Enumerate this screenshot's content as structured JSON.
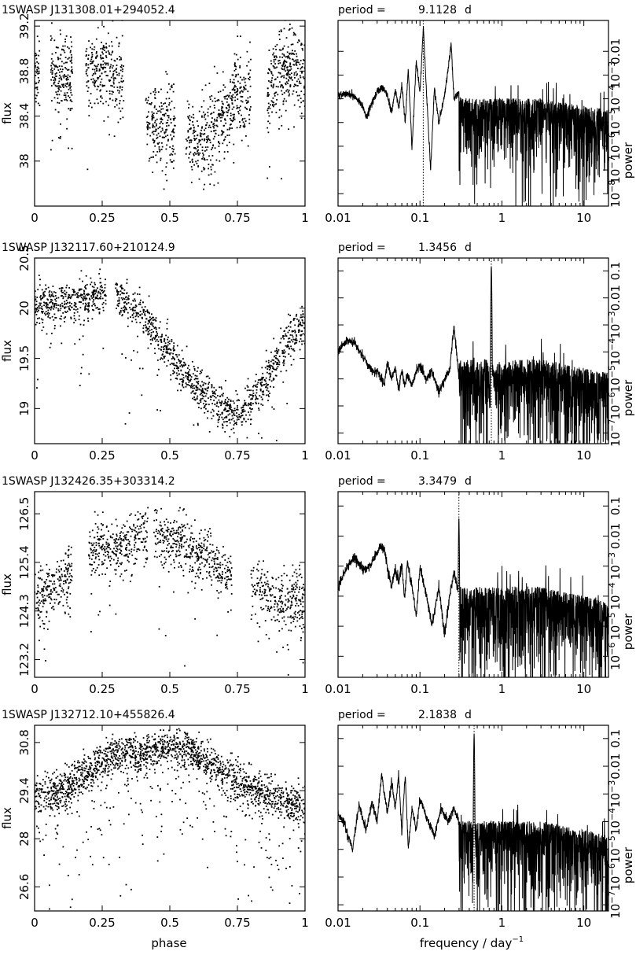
{
  "figure": {
    "xlabel_phase": "phase",
    "xlabel_freq": "frequency / day",
    "xlabel_freq_exp": "−1",
    "ylabel_flux": "flux",
    "ylabel_power": "power",
    "period_prefix": "period =",
    "period_unit": "d"
  },
  "chart_data": [
    {
      "type": "scatter",
      "title": "1SWASP J131308.01+294052.4",
      "xlabel": "",
      "ylabel": "flux",
      "xlim": [
        0,
        1
      ],
      "ylim": [
        37.6,
        39.25
      ],
      "xticks": [
        0,
        0.25,
        0.5,
        0.75,
        1
      ],
      "xtick_labels": [
        "0",
        "0.25",
        "0.5",
        "0.75",
        "1"
      ],
      "yticks": [
        38,
        38.4,
        38.8,
        39.2
      ],
      "ytick_labels": [
        "38",
        "38.4",
        "38.8",
        "39.2"
      ],
      "light_curve": {
        "x": [
          0.0,
          0.05,
          0.1,
          0.15,
          0.2,
          0.25,
          0.3,
          0.35,
          0.4,
          0.45,
          0.5,
          0.55,
          0.6,
          0.65,
          0.7,
          0.75,
          0.8,
          0.85,
          0.9,
          0.95,
          1.0
        ],
        "y": [
          38.75,
          38.85,
          38.8,
          38.75,
          38.85,
          38.8,
          38.75,
          38.7,
          38.4,
          38.3,
          38.3,
          38.25,
          38.2,
          38.3,
          38.45,
          38.6,
          38.5,
          38.55,
          38.8,
          38.85,
          38.75
        ]
      },
      "scatter_sd": 0.32,
      "outlier_fraction": 0.07,
      "sample_gaps": [
        [
          0.02,
          0.06
        ],
        [
          0.14,
          0.19
        ],
        [
          0.33,
          0.41
        ],
        [
          0.52,
          0.56
        ],
        [
          0.8,
          0.86
        ]
      ],
      "n_points": 1500,
      "seed": 11
    },
    {
      "type": "line",
      "title": "period = 9.1128 d",
      "period_value": "9.1128",
      "xlabel": "",
      "ylabel": "power",
      "xscale": "log",
      "yscale": "log",
      "xlim": [
        0.01,
        20
      ],
      "ylim": [
        3e-09,
        0.2
      ],
      "xticks": [
        0.01,
        0.1,
        1,
        10
      ],
      "xtick_labels": [
        "0.01",
        "0.1",
        "1",
        "10"
      ],
      "yticks": [
        1e-08,
        1e-07,
        1e-06,
        1e-05,
        0.0001,
        0.001,
        0.01
      ],
      "ytick_labels": [
        "10−8",
        "10−7",
        "10−6",
        "10−5",
        "10−4",
        "10−3",
        "0.01"
      ],
      "peak_frequency": 0.1097,
      "peak_power": 0.095,
      "noise_level": 3e-05,
      "spectrum_points": {
        "frequency": [
          0.01,
          0.0125,
          0.016,
          0.02,
          0.022,
          0.025,
          0.03,
          0.035,
          0.04,
          0.045,
          0.05,
          0.055,
          0.06,
          0.066,
          0.072,
          0.08,
          0.09,
          0.1,
          0.11,
          0.12,
          0.135,
          0.15,
          0.17,
          0.2,
          0.22,
          0.24,
          0.26,
          0.3
        ],
        "power": [
          0.00014,
          0.00016,
          0.00013,
          5e-05,
          1.5e-05,
          5e-05,
          0.0002,
          0.00032,
          0.00015,
          2.5e-05,
          0.00025,
          4e-05,
          0.0004,
          1e-05,
          0.002,
          8e-07,
          0.004,
          0.0002,
          0.095,
          0.0002,
          1e-07,
          0.0003,
          1e-05,
          0.00015,
          0.0015,
          0.025,
          0.0001,
          0.0002
        ]
      },
      "seed": 101
    },
    {
      "type": "scatter",
      "title": "1SWASP J132117.60+210124.9",
      "xlabel": "",
      "ylabel": "flux",
      "xlim": [
        0,
        1
      ],
      "ylim": [
        18.65,
        20.5
      ],
      "xticks": [
        0,
        0.25,
        0.5,
        0.75,
        1
      ],
      "xtick_labels": [
        "0",
        "0.25",
        "0.5",
        "0.75",
        "1"
      ],
      "yticks": [
        19,
        19.5,
        20,
        20.5
      ],
      "ytick_labels": [
        "19",
        "19.5",
        "20",
        "20.5"
      ],
      "light_curve": {
        "x": [
          0.0,
          0.05,
          0.1,
          0.15,
          0.2,
          0.25,
          0.3,
          0.35,
          0.4,
          0.45,
          0.5,
          0.55,
          0.6,
          0.65,
          0.7,
          0.75,
          0.8,
          0.85,
          0.9,
          0.95,
          1.0
        ],
        "y": [
          20.0,
          20.05,
          20.05,
          20.05,
          20.1,
          20.15,
          20.1,
          20.05,
          19.95,
          19.75,
          19.55,
          19.35,
          19.2,
          19.1,
          19.0,
          18.95,
          19.05,
          19.25,
          19.5,
          19.7,
          19.85
        ]
      },
      "scatter_sd": 0.18,
      "outlier_fraction": 0.05,
      "sample_gaps": [
        [
          0.265,
          0.3
        ]
      ],
      "n_points": 1500,
      "seed": 22
    },
    {
      "type": "line",
      "title": "period = 1.3456 d",
      "period_value": "1.3456",
      "xlabel": "",
      "ylabel": "power",
      "xscale": "log",
      "yscale": "log",
      "xlim": [
        0.01,
        20
      ],
      "ylim": [
        4e-08,
        0.3
      ],
      "xticks": [
        0.01,
        0.1,
        1,
        10
      ],
      "xtick_labels": [
        "0.01",
        "0.1",
        "1",
        "10"
      ],
      "yticks": [
        1e-07,
        1e-06,
        1e-05,
        0.0001,
        0.001,
        0.01,
        0.1
      ],
      "ytick_labels": [
        "10−7",
        "10−6",
        "10−5",
        "10−4",
        "10−3",
        "0.01",
        "0.1"
      ],
      "peak_frequency": 0.7432,
      "peak_power": 0.15,
      "noise_level": 1.5e-05,
      "spectrum_points": {
        "frequency": [
          0.01,
          0.013,
          0.016,
          0.02,
          0.023,
          0.027,
          0.03,
          0.033,
          0.037,
          0.04,
          0.045,
          0.05,
          0.055,
          0.06,
          0.065,
          0.07,
          0.08,
          0.09,
          0.1,
          0.12,
          0.14,
          0.17,
          0.2,
          0.23,
          0.26,
          0.3
        ],
        "power": [
          0.0001,
          0.0003,
          0.0002,
          7e-05,
          3e-05,
          2e-05,
          2e-05,
          1e-05,
          7e-06,
          4e-05,
          1e-05,
          2.5e-05,
          4e-06,
          2e-05,
          6e-06,
          1.5e-05,
          6e-06,
          2e-05,
          3e-05,
          1e-05,
          2e-05,
          3e-06,
          1e-05,
          2e-05,
          0.001,
          1e-05
        ]
      },
      "seed": 202
    },
    {
      "type": "scatter",
      "title": "1SWASP J132426.35+303314.2",
      "xlabel": "",
      "ylabel": "flux",
      "xlim": [
        0,
        1
      ],
      "ylim": [
        122.8,
        127.0
      ],
      "xticks": [
        0,
        0.25,
        0.5,
        0.75,
        1
      ],
      "xtick_labels": [
        "0",
        "0.25",
        "0.5",
        "0.75",
        "1"
      ],
      "yticks": [
        123.2,
        124.3,
        125.4,
        126.5
      ],
      "ytick_labels": [
        "123.2",
        "124.3",
        "125.4",
        "126.5"
      ],
      "light_curve": {
        "x": [
          0.0,
          0.05,
          0.1,
          0.15,
          0.2,
          0.25,
          0.3,
          0.35,
          0.4,
          0.45,
          0.5,
          0.55,
          0.6,
          0.65,
          0.7,
          0.75,
          0.8,
          0.85,
          0.9,
          0.95,
          1.0
        ],
        "y": [
          124.6,
          124.8,
          125.0,
          125.3,
          125.6,
          125.8,
          125.6,
          125.9,
          126.0,
          126.2,
          125.8,
          125.9,
          125.6,
          125.5,
          125.2,
          125.1,
          125.0,
          124.7,
          124.5,
          124.6,
          124.6
        ]
      },
      "scatter_sd": 0.55,
      "outlier_fraction": 0.08,
      "sample_gaps": [
        [
          0.14,
          0.2
        ],
        [
          0.42,
          0.44
        ],
        [
          0.73,
          0.8
        ]
      ],
      "n_points": 1300,
      "seed": 33
    },
    {
      "type": "line",
      "title": "period = 3.3479 d",
      "period_value": "3.3479",
      "xlabel": "",
      "ylabel": "power",
      "xscale": "log",
      "yscale": "log",
      "xlim": [
        0.01,
        20
      ],
      "ylim": [
        2e-07,
        0.3
      ],
      "xticks": [
        0.01,
        0.1,
        1,
        10
      ],
      "xtick_labels": [
        "0.01",
        "0.1",
        "1",
        "10"
      ],
      "yticks": [
        1e-06,
        1e-05,
        0.0001,
        0.001,
        0.01,
        0.1
      ],
      "ytick_labels": [
        "10−6",
        "10−5",
        "10−4",
        "10−3",
        "0.01",
        "0.1"
      ],
      "peak_frequency": 0.2987,
      "peak_power": 0.04,
      "noise_level": 6e-05,
      "spectrum_points": {
        "frequency": [
          0.01,
          0.013,
          0.016,
          0.02,
          0.025,
          0.03,
          0.033,
          0.036,
          0.04,
          0.045,
          0.05,
          0.055,
          0.06,
          0.065,
          0.07,
          0.08,
          0.09,
          0.1,
          0.12,
          0.14,
          0.17,
          0.2,
          0.23,
          0.26,
          0.3
        ],
        "power": [
          0.0002,
          0.001,
          0.002,
          0.0008,
          0.001,
          0.003,
          0.005,
          0.004,
          0.001,
          0.0002,
          0.0008,
          0.0003,
          0.001,
          8e-05,
          0.0015,
          0.0002,
          2e-05,
          0.001,
          0.0001,
          1e-05,
          0.0002,
          5e-06,
          0.0001,
          0.0006,
          0.0001
        ]
      },
      "seed": 303
    },
    {
      "type": "scatter",
      "title": "1SWASP J132712.10+455826.4",
      "xlabel": "phase",
      "ylabel": "flux",
      "xlim": [
        0,
        1
      ],
      "ylim": [
        25.9,
        31.3
      ],
      "xticks": [
        0,
        0.25,
        0.5,
        0.75,
        1
      ],
      "xtick_labels": [
        "0",
        "0.25",
        "0.5",
        "0.75",
        "1"
      ],
      "yticks": [
        26.6,
        28,
        29.4,
        30.8
      ],
      "ytick_labels": [
        "26.6",
        "28",
        "29.4",
        "30.8"
      ],
      "light_curve": {
        "x": [
          0.0,
          0.05,
          0.1,
          0.15,
          0.2,
          0.25,
          0.3,
          0.35,
          0.4,
          0.45,
          0.5,
          0.55,
          0.6,
          0.65,
          0.7,
          0.75,
          0.8,
          0.85,
          0.9,
          0.95,
          1.0
        ],
        "y": [
          29.2,
          29.3,
          29.4,
          29.7,
          30.0,
          30.2,
          30.5,
          30.5,
          30.4,
          30.6,
          30.7,
          30.6,
          30.4,
          30.2,
          29.9,
          29.7,
          29.5,
          29.3,
          29.2,
          29.0,
          29.0
        ]
      },
      "scatter_sd": 0.5,
      "outlier_fraction": 0.12,
      "sample_gaps": [],
      "n_points": 2000,
      "seed": 44
    },
    {
      "type": "line",
      "title": "period = 2.1838 d",
      "period_value": "2.1838",
      "xlabel": "frequency / day−1",
      "ylabel": "power",
      "xscale": "log",
      "yscale": "log",
      "xlim": [
        0.01,
        20
      ],
      "ylim": [
        6e-08,
        0.3
      ],
      "xticks": [
        0.01,
        0.1,
        1,
        10
      ],
      "xtick_labels": [
        "0.01",
        "0.1",
        "1",
        "10"
      ],
      "yticks": [
        1e-07,
        1e-06,
        1e-05,
        0.0001,
        0.001,
        0.01,
        0.1
      ],
      "ytick_labels": [
        "10−7",
        "10−6",
        "10−5",
        "10−4",
        "10−3",
        "0.01",
        "0.1"
      ],
      "peak_frequency": 0.4579,
      "peak_power": 0.15,
      "noise_level": 3e-05,
      "spectrum_points": {
        "frequency": [
          0.01,
          0.012,
          0.015,
          0.018,
          0.022,
          0.026,
          0.03,
          0.034,
          0.04,
          0.045,
          0.05,
          0.055,
          0.06,
          0.066,
          0.072,
          0.08,
          0.09,
          0.1,
          0.12,
          0.15,
          0.18,
          0.22,
          0.26,
          0.3
        ],
        "power": [
          0.0002,
          8e-05,
          1e-05,
          0.0004,
          5e-05,
          0.0005,
          0.0001,
          0.005,
          0.0002,
          0.003,
          0.0003,
          0.005,
          4e-05,
          0.005,
          1e-05,
          0.0003,
          5e-05,
          0.0007,
          0.00015,
          3e-05,
          0.0003,
          0.0001,
          0.0003,
          0.0001
        ]
      },
      "seed": 404
    }
  ]
}
